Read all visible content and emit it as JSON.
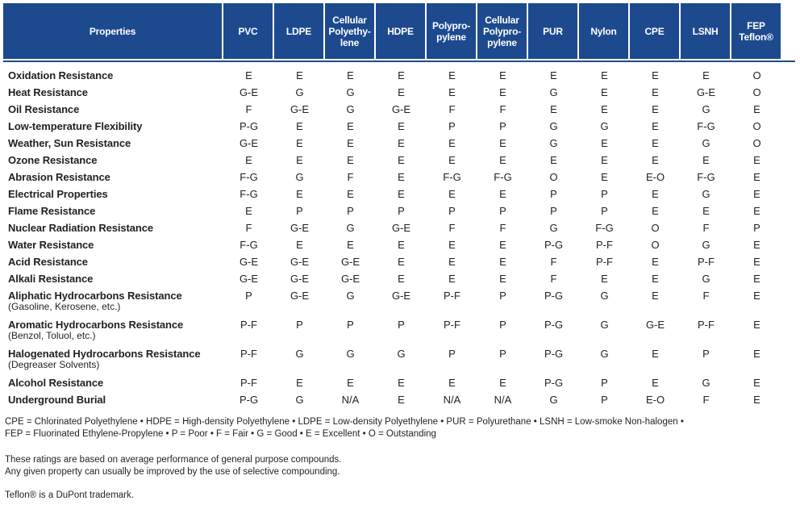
{
  "header": {
    "properties_label": "Properties",
    "columns": [
      [
        "PVC"
      ],
      [
        "LDPE"
      ],
      [
        "Cellular",
        "Polyethy-",
        "lene"
      ],
      [
        "HDPE"
      ],
      [
        "Polypro-",
        "pylene"
      ],
      [
        "Cellular",
        "Polypro-",
        "pylene"
      ],
      [
        "PUR"
      ],
      [
        "Nylon"
      ],
      [
        "CPE"
      ],
      [
        "LSNH"
      ],
      [
        "FEP",
        "Teflon®"
      ]
    ]
  },
  "rows": [
    {
      "name": "Oxidation Resistance",
      "sub": "",
      "values": [
        "E",
        "E",
        "E",
        "E",
        "E",
        "E",
        "E",
        "E",
        "E",
        "E",
        "O"
      ]
    },
    {
      "name": "Heat Resistance",
      "sub": "",
      "values": [
        "G-E",
        "G",
        "G",
        "E",
        "E",
        "E",
        "G",
        "E",
        "E",
        "G-E",
        "O"
      ]
    },
    {
      "name": "Oil Resistance",
      "sub": "",
      "values": [
        "F",
        "G-E",
        "G",
        "G-E",
        "F",
        "F",
        "E",
        "E",
        "E",
        "G",
        "E"
      ]
    },
    {
      "name": "Low-temperature Flexibility",
      "sub": "",
      "values": [
        "P-G",
        "E",
        "E",
        "E",
        "P",
        "P",
        "G",
        "G",
        "E",
        "F-G",
        "O"
      ]
    },
    {
      "name": "Weather, Sun Resistance",
      "sub": "",
      "values": [
        "G-E",
        "E",
        "E",
        "E",
        "E",
        "E",
        "G",
        "E",
        "E",
        "G",
        "O"
      ]
    },
    {
      "name": "Ozone Resistance",
      "sub": "",
      "values": [
        "E",
        "E",
        "E",
        "E",
        "E",
        "E",
        "E",
        "E",
        "E",
        "E",
        "E"
      ]
    },
    {
      "name": "Abrasion Resistance",
      "sub": "",
      "values": [
        "F-G",
        "G",
        "F",
        "E",
        "F-G",
        "F-G",
        "O",
        "E",
        "E-O",
        "F-G",
        "E"
      ]
    },
    {
      "name": "Electrical Properties",
      "sub": "",
      "values": [
        "F-G",
        "E",
        "E",
        "E",
        "E",
        "E",
        "P",
        "P",
        "E",
        "G",
        "E"
      ]
    },
    {
      "name": "Flame Resistance",
      "sub": "",
      "values": [
        "E",
        "P",
        "P",
        "P",
        "P",
        "P",
        "P",
        "P",
        "E",
        "E",
        "E"
      ]
    },
    {
      "name": "Nuclear Radiation Resistance",
      "sub": "",
      "values": [
        "F",
        "G-E",
        "G",
        "G-E",
        "F",
        "F",
        "G",
        "F-G",
        "O",
        "F",
        "P"
      ]
    },
    {
      "name": "Water Resistance",
      "sub": "",
      "values": [
        "F-G",
        "E",
        "E",
        "E",
        "E",
        "E",
        "P-G",
        "P-F",
        "O",
        "G",
        "E"
      ]
    },
    {
      "name": "Acid Resistance",
      "sub": "",
      "values": [
        "G-E",
        "G-E",
        "G-E",
        "E",
        "E",
        "E",
        "F",
        "P-F",
        "E",
        "P-F",
        "E"
      ]
    },
    {
      "name": "Alkali Resistance",
      "sub": "",
      "values": [
        "G-E",
        "G-E",
        "G-E",
        "E",
        "E",
        "E",
        "F",
        "E",
        "E",
        "G",
        "E"
      ]
    },
    {
      "name": "Aliphatic Hydrocarbons Resistance",
      "sub": "(Gasoline, Kerosene, etc.)",
      "values": [
        "P",
        "G-E",
        "G",
        "G-E",
        "P-F",
        "P",
        "P-G",
        "G",
        "E",
        "F",
        "E"
      ]
    },
    {
      "name": "Aromatic Hydrocarbons Resistance",
      "sub": "(Benzol, Toluol, etc.)",
      "values": [
        "P-F",
        "P",
        "P",
        "P",
        "P-F",
        "P",
        "P-G",
        "G",
        "G-E",
        "P-F",
        "E"
      ]
    },
    {
      "name": "Halogenated Hydrocarbons Resistance",
      "sub": "(Degreaser Solvents)",
      "values": [
        "P-F",
        "G",
        "G",
        "G",
        "P",
        "P",
        "P-G",
        "G",
        "E",
        "P",
        "E"
      ]
    },
    {
      "name": "Alcohol Resistance",
      "sub": "",
      "values": [
        "P-F",
        "E",
        "E",
        "E",
        "E",
        "E",
        "P-G",
        "P",
        "E",
        "G",
        "E"
      ]
    },
    {
      "name": "Underground Burial",
      "sub": "",
      "values": [
        "P-G",
        "G",
        "N/A",
        "E",
        "N/A",
        "N/A",
        "G",
        "P",
        "E-O",
        "F",
        "E"
      ]
    }
  ],
  "footer": {
    "legend_line1": "CPE = Chlorinated Polyethylene • HDPE = High-density Polyethylene • LDPE = Low-density Polyethylene • PUR = Polyurethane • LSNH = Low-smoke Non-halogen •",
    "legend_line2": "FEP = Fluorinated Ethylene-Propylene • P = Poor • F = Fair • G = Good • E = Excellent • O = Outstanding",
    "note_line1": "These ratings are based on average performance of general purpose compounds.",
    "note_line2": "Any given property can usually be improved by the use of selective compounding.",
    "trademark": "Teflon® is a DuPont trademark."
  },
  "colors": {
    "header_bg": "#1d4a8e",
    "header_text": "#ffffff",
    "body_text": "#231f20"
  }
}
